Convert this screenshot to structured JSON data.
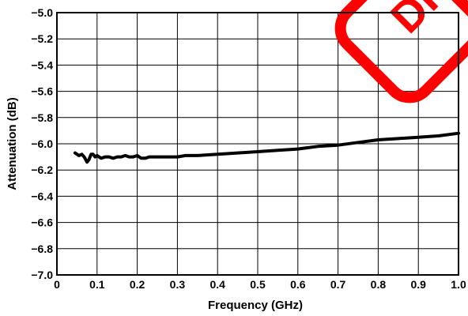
{
  "chart_data": {
    "type": "line",
    "title": "",
    "xlabel": "Frequency (GHz)",
    "ylabel": "Attenuation (dB)",
    "xlim": [
      0,
      1.0
    ],
    "ylim": [
      -7.0,
      -5.0
    ],
    "grid": true,
    "legend": "none",
    "x_ticks": [
      0,
      0.1,
      0.2,
      0.3,
      0.4,
      0.5,
      0.6,
      0.7,
      0.8,
      0.9,
      1.0
    ],
    "x_tick_labels": [
      "0",
      "0.1",
      "0.2",
      "0.3",
      "0.4",
      "0.5",
      "0.6",
      "0.7",
      "0.8",
      "0.9",
      "1.0"
    ],
    "y_ticks": [
      -5.0,
      -5.2,
      -5.4,
      -5.6,
      -5.8,
      -6.0,
      -6.2,
      -6.4,
      -6.6,
      -6.8,
      -7.0
    ],
    "y_tick_labels": [
      "−5.0",
      "−5.2",
      "−5.4",
      "−5.6",
      "−5.8",
      "−6.0",
      "−6.2",
      "−6.4",
      "−6.6",
      "−6.8",
      "−7.0"
    ],
    "series": [
      {
        "color": "#000000",
        "x": [
          0.045,
          0.055,
          0.062,
          0.068,
          0.075,
          0.08,
          0.085,
          0.09,
          0.095,
          0.1,
          0.11,
          0.12,
          0.13,
          0.14,
          0.15,
          0.16,
          0.17,
          0.18,
          0.19,
          0.2,
          0.21,
          0.22,
          0.23,
          0.25,
          0.28,
          0.3,
          0.32,
          0.35,
          0.4,
          0.45,
          0.5,
          0.55,
          0.6,
          0.65,
          0.7,
          0.75,
          0.8,
          0.85,
          0.9,
          0.95,
          1.0
        ],
        "y": [
          -6.07,
          -6.09,
          -6.08,
          -6.1,
          -6.14,
          -6.12,
          -6.08,
          -6.08,
          -6.1,
          -6.09,
          -6.11,
          -6.1,
          -6.1,
          -6.11,
          -6.1,
          -6.1,
          -6.09,
          -6.1,
          -6.1,
          -6.09,
          -6.11,
          -6.11,
          -6.1,
          -6.1,
          -6.1,
          -6.1,
          -6.09,
          -6.09,
          -6.08,
          -6.07,
          -6.06,
          -6.05,
          -6.04,
          -6.02,
          -6.01,
          -5.99,
          -5.97,
          -5.96,
          -5.95,
          -5.94,
          -5.92
        ]
      }
    ]
  },
  "stamp": {
    "text": "DI",
    "color": "#ff0000"
  }
}
